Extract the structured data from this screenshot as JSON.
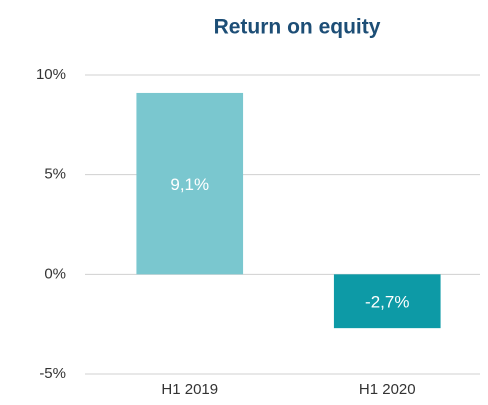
{
  "chart_data": {
    "type": "bar",
    "title": "Return on equity",
    "categories": [
      "H1 2019",
      "H1 2020"
    ],
    "values": [
      9.1,
      -2.7
    ],
    "value_labels": [
      "9,1%",
      "-2,7%"
    ],
    "colors": [
      "#7ac7cf",
      "#0d9aa6"
    ],
    "ylim": [
      -5,
      10
    ],
    "yticks": [
      {
        "value": 10,
        "label": "10%"
      },
      {
        "value": 5,
        "label": "5%"
      },
      {
        "value": 0,
        "label": "0%"
      },
      {
        "value": -5,
        "label": "-5%"
      }
    ],
    "grid": true
  }
}
